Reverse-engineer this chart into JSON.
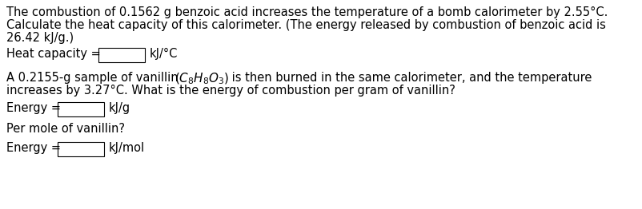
{
  "bg_color": "#ffffff",
  "text_color": "#000000",
  "font_size": 10.5,
  "line1": "The combustion of 0.1562 g benzoic acid increases the temperature of a bomb calorimeter by 2.55°C.",
  "line2": "Calculate the heat capacity of this calorimeter. (The energy released by combustion of benzoic acid is",
  "line3": "26.42 kJ/g.)",
  "heat_label": "Heat capacity =",
  "heat_unit": "kJ/°C",
  "vanillin_pre": "A 0.2155-g sample of vanillin ",
  "vanillin_post": " is then burned in the same calorimeter, and the temperature",
  "vanillin_line2": "increases by 3.27°C. What is the energy of combustion per gram of vanillin?",
  "energy1_label": "Energy =",
  "energy1_unit": "kJ/g",
  "per_mole": "Per mole of vanillin?",
  "energy2_label": "Energy =",
  "energy2_unit": "kJ/mol",
  "fig_width": 8.02,
  "fig_height": 2.62,
  "dpi": 100
}
